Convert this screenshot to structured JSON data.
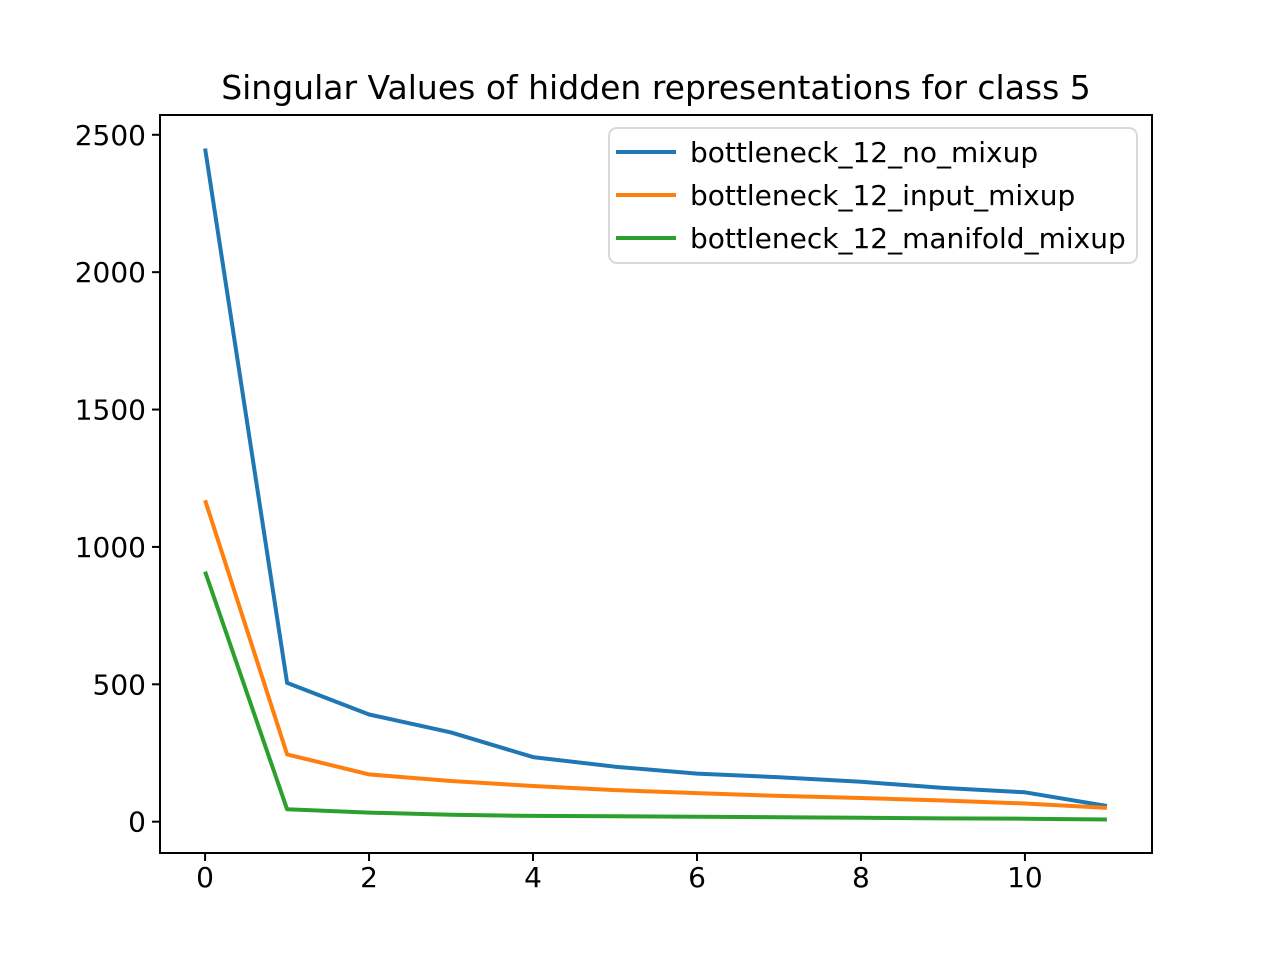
{
  "chart_data": {
    "type": "line",
    "title": "Singular Values of hidden representations for class 5",
    "xlabel": "",
    "ylabel": "",
    "grid": false,
    "legend_position": "upper right",
    "xlim": [
      -0.55,
      11.55
    ],
    "ylim": [
      -114,
      2572
    ],
    "x": [
      0,
      1,
      2,
      3,
      4,
      5,
      6,
      7,
      8,
      9,
      10,
      11
    ],
    "xticks": [
      0,
      2,
      4,
      6,
      8,
      10
    ],
    "xtick_labels": [
      "0",
      "2",
      "4",
      "6",
      "8",
      "10"
    ],
    "yticks": [
      0,
      500,
      1000,
      1500,
      2000,
      2500
    ],
    "ytick_labels": [
      "0",
      "500",
      "1000",
      "1500",
      "2000",
      "2500"
    ],
    "series": [
      {
        "name": "bottleneck_12_no_mixup",
        "color": "#1f77b4",
        "values": [
          2450,
          505,
          390,
          325,
          235,
          200,
          175,
          162,
          145,
          123,
          107,
          57
        ]
      },
      {
        "name": "bottleneck_12_input_mixup",
        "color": "#ff7f0e",
        "values": [
          1170,
          245,
          172,
          148,
          130,
          115,
          104,
          94,
          86,
          77,
          66,
          50
        ]
      },
      {
        "name": "bottleneck_12_manifold_mixup",
        "color": "#2ca02c",
        "values": [
          910,
          45,
          33,
          25,
          21,
          20,
          18,
          16,
          14,
          12,
          11,
          8
        ]
      }
    ],
    "colors": {
      "axes": "#000000",
      "legend_border": "#d9d9d9",
      "background": "#ffffff"
    }
  }
}
